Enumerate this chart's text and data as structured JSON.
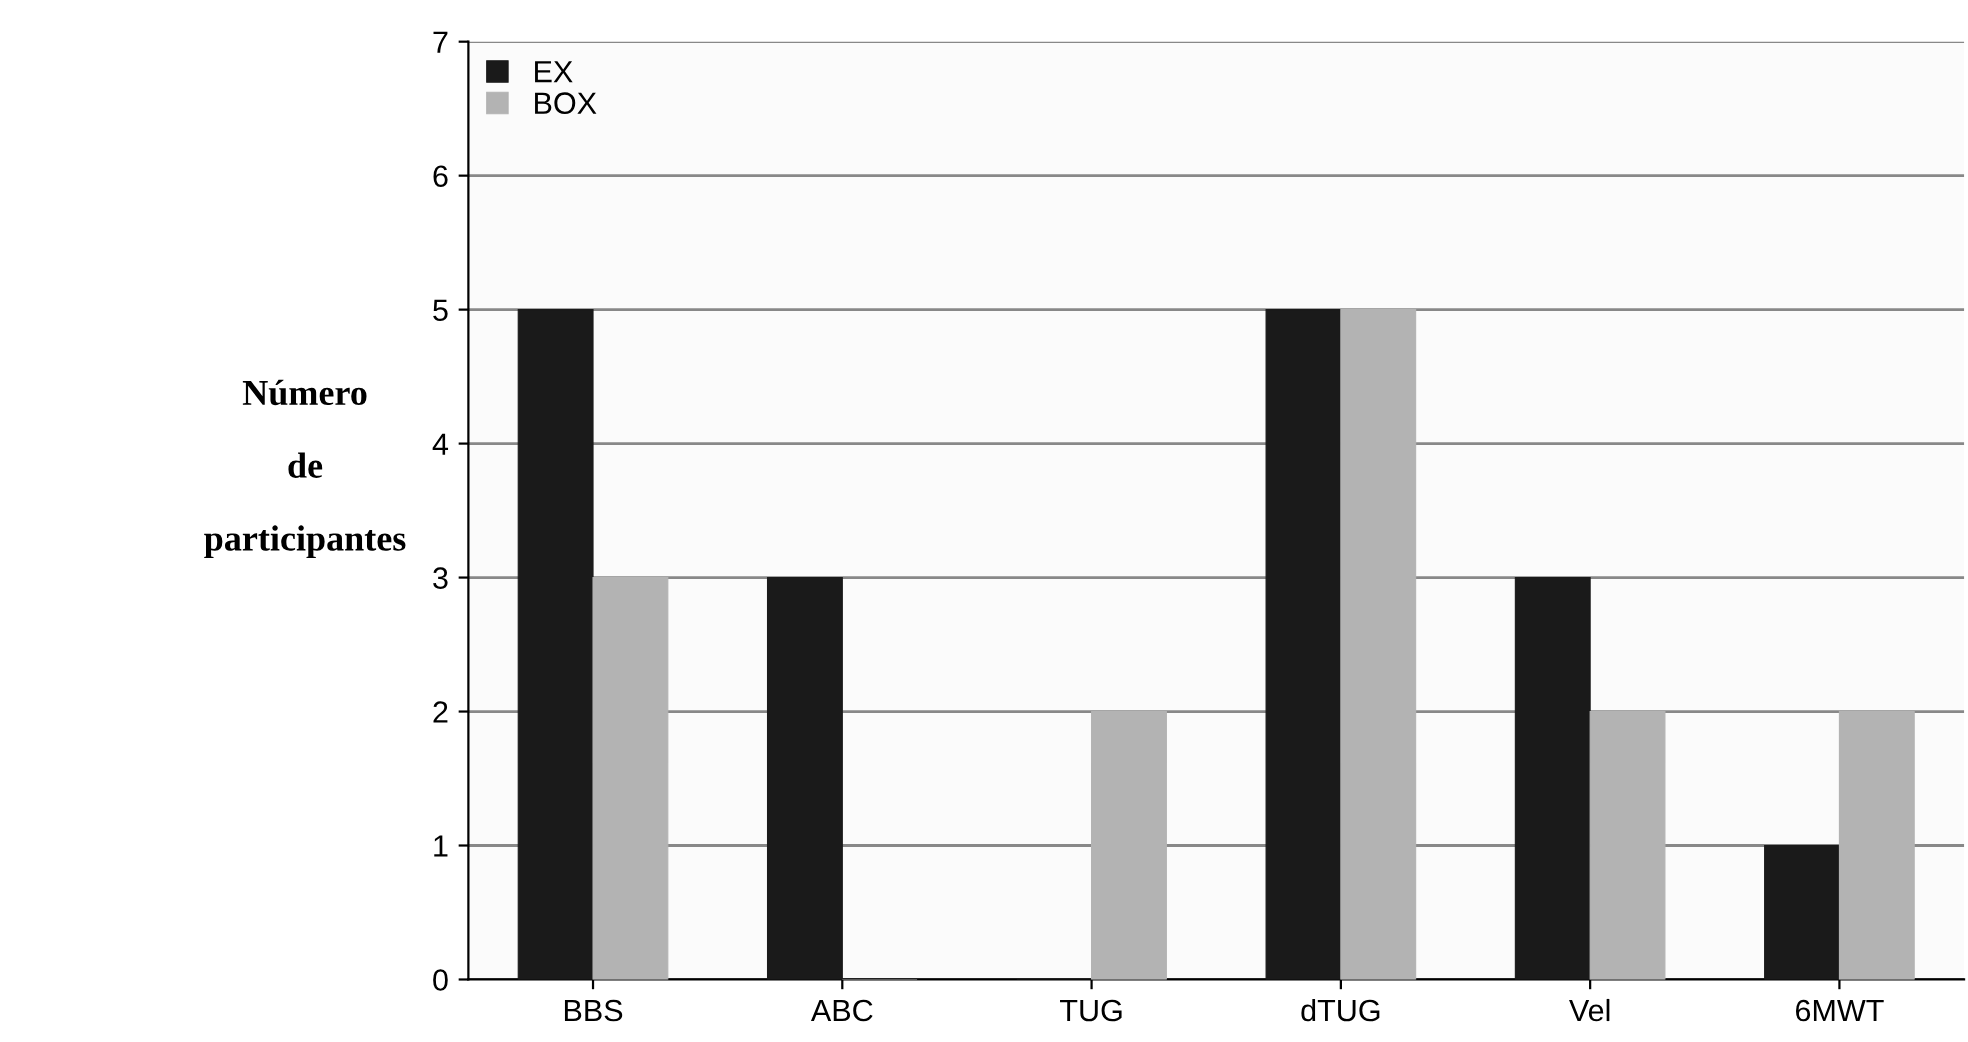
{
  "chart_data": {
    "type": "bar",
    "ylabel": "Número\nde\nparticipantes",
    "categories": [
      "BBS",
      "ABC",
      "TUG",
      "dTUG",
      "Vel",
      "6MWT"
    ],
    "series": [
      {
        "name": "EX",
        "color": "#1a1a1a",
        "values": [
          5,
          3,
          0,
          5,
          3,
          1
        ]
      },
      {
        "name": "BOX",
        "color": "#b3b3b3",
        "values": [
          3,
          0,
          2,
          5,
          2,
          2
        ]
      }
    ],
    "ylim": [
      0,
      7
    ],
    "yticks": [
      0,
      1,
      2,
      3,
      4,
      5,
      6,
      7
    ],
    "grid": "y",
    "legend": "top left"
  }
}
